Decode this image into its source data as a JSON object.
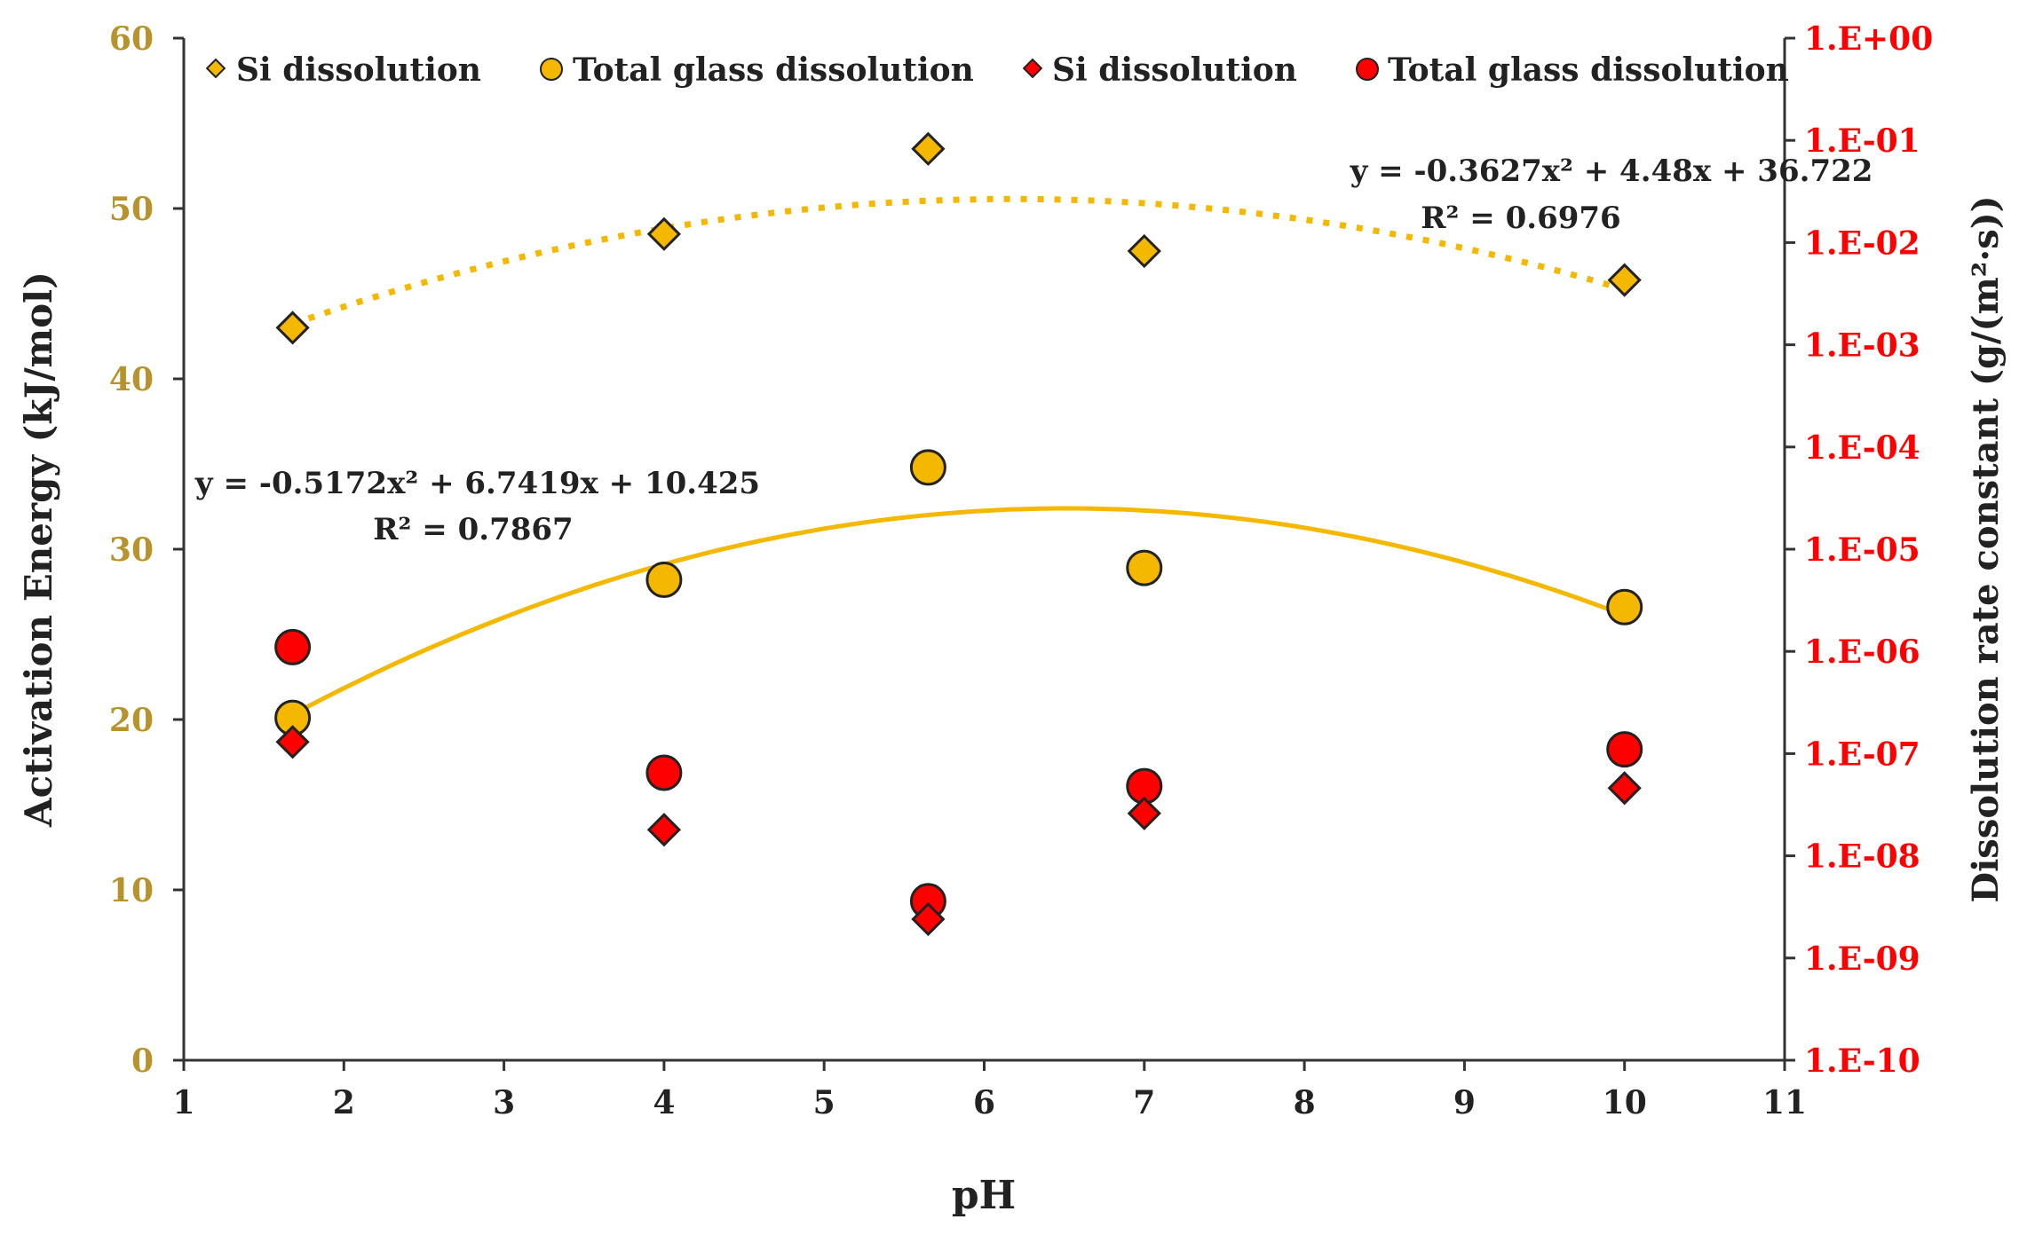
{
  "chart_data": {
    "type": "scatter",
    "xlabel": "pH",
    "ylabel_left": "Activation Energy (kJ/mol)",
    "ylabel_right": "Dissolution rate constant (g/(m²·s))",
    "xlim": [
      1,
      11
    ],
    "x_ticks": [
      "1",
      "2",
      "3",
      "4",
      "5",
      "6",
      "7",
      "8",
      "9",
      "10",
      "11"
    ],
    "ylim_left": [
      0,
      60
    ],
    "y_left_ticks": [
      "0",
      "10",
      "20",
      "30",
      "40",
      "50",
      "60"
    ],
    "y_right_exponent_range": [
      -10,
      0
    ],
    "y_right_ticks": [
      "1.E-10",
      "1.E-09",
      "1.E-08",
      "1.E-07",
      "1.E-06",
      "1.E-05",
      "1.E-04",
      "1.E-03",
      "1.E-02",
      "1.E-01",
      "1.E+00"
    ],
    "grid": false,
    "legend_position": "top",
    "series": [
      {
        "name": "Si dissolution",
        "axis": "left",
        "marker": "diamond",
        "color": "#F5B800",
        "x": [
          1.68,
          4.0,
          5.65,
          7.0,
          10.0
        ],
        "y": [
          43.0,
          48.5,
          53.5,
          47.5,
          45.8
        ]
      },
      {
        "name": "Total glass dissolution",
        "axis": "left",
        "marker": "circle",
        "color": "#F5B800",
        "x": [
          1.68,
          4.0,
          5.65,
          7.0,
          10.0
        ],
        "y": [
          20.1,
          28.2,
          34.8,
          28.9,
          26.6
        ]
      },
      {
        "name": "Si dissolution",
        "axis": "right",
        "marker": "diamond",
        "color": "#FF0000",
        "x": [
          1.68,
          4.0,
          5.65,
          7.0,
          10.0
        ],
        "y": [
          1.3e-07,
          1.8e-08,
          2.4e-09,
          2.6e-08,
          4.6e-08
        ]
      },
      {
        "name": "Total glass dissolution",
        "axis": "right",
        "marker": "circle",
        "color": "#FF0000",
        "x": [
          1.68,
          4.0,
          5.65,
          7.0,
          10.0
        ],
        "y": [
          1.1e-06,
          6.5e-08,
          3.6e-09,
          4.8e-08,
          1.1e-07
        ]
      }
    ],
    "trendlines": [
      {
        "name": "Si dissolution trend",
        "style": "dotted",
        "color": "#F5B800",
        "coeffs": [
          -0.3627,
          4.48,
          36.722
        ],
        "x_range": [
          1.68,
          10.0
        ],
        "equation": "y = -0.3627x² + 4.48x + 36.722",
        "r2": "R² = 0.6976"
      },
      {
        "name": "Total glass dissolution trend",
        "style": "solid",
        "color": "#F5B800",
        "coeffs": [
          -0.5172,
          6.7419,
          10.425
        ],
        "x_range": [
          1.68,
          10.0
        ],
        "equation": "y = -0.5172x² + 6.7419x + 10.425",
        "r2": "R² = 0.7867"
      }
    ],
    "colors": {
      "left_axis_text": "#B8922A",
      "right_axis_text": "#FF0000",
      "axis_line": "#333333",
      "text": "#222222",
      "marker_stroke": "#222222"
    }
  }
}
